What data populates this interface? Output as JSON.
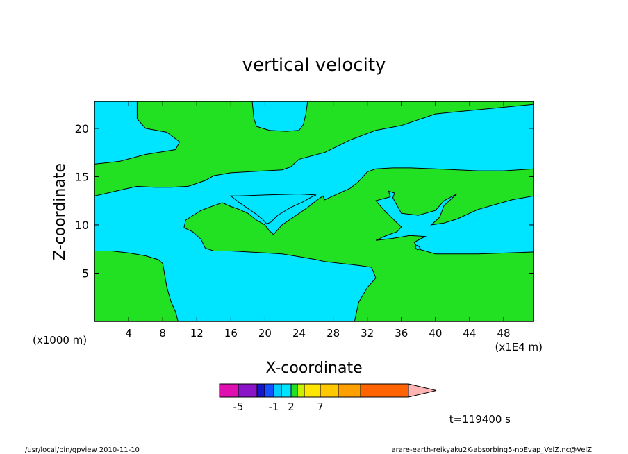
{
  "chart_data": {
    "type": "heatmap",
    "title": "vertical velocity",
    "xlabel": "X-coordinate",
    "ylabel": "Z-coordinate",
    "x_unit_left": "(x1000 m)",
    "x_unit_right": "(x1E4 m)",
    "xlim": [
      0,
      51.5
    ],
    "ylim": [
      0,
      22.8
    ],
    "xticks": [
      "4",
      "8",
      "12",
      "16",
      "20",
      "24",
      "28",
      "32",
      "36",
      "40",
      "44",
      "48"
    ],
    "xtick_values": [
      4,
      8,
      12,
      16,
      20,
      24,
      28,
      32,
      36,
      40,
      44,
      48
    ],
    "yticks": [
      "5",
      "10",
      "15",
      "20"
    ],
    "ytick_values": [
      5,
      10,
      15,
      20
    ],
    "background_color": "#00e5ff",
    "fill_color": "#22e022",
    "regions": [
      {
        "name": "bottom-left-updraft",
        "color": "#22e022",
        "points": [
          [
            0,
            0
          ],
          [
            0,
            7.3
          ],
          [
            2,
            7.3
          ],
          [
            4,
            7.1
          ],
          [
            6,
            6.8
          ],
          [
            7.5,
            6.4
          ],
          [
            8,
            6
          ],
          [
            8.5,
            3.5
          ],
          [
            9,
            2
          ],
          [
            9.5,
            1
          ],
          [
            9.8,
            0
          ]
        ]
      },
      {
        "name": "bottom-right-updraft",
        "color": "#22e022",
        "points": [
          [
            30.5,
            0
          ],
          [
            31,
            2
          ],
          [
            32,
            3.5
          ],
          [
            33,
            4.5
          ],
          [
            32.5,
            5.6
          ],
          [
            31,
            5.8
          ],
          [
            29,
            6
          ],
          [
            27,
            6.2
          ],
          [
            26,
            6.4
          ],
          [
            24,
            6.7
          ],
          [
            22,
            7
          ],
          [
            20,
            7.1
          ],
          [
            18,
            7.2
          ],
          [
            16,
            7.3
          ],
          [
            14,
            7.3
          ],
          [
            13,
            7.6
          ],
          [
            12.5,
            8.5
          ],
          [
            11.5,
            9.3
          ],
          [
            10.5,
            9.7
          ],
          [
            10.7,
            10.5
          ],
          [
            12.5,
            11.5
          ],
          [
            14,
            12
          ],
          [
            15,
            12.3
          ],
          [
            16,
            11.9
          ],
          [
            17,
            11.6
          ],
          [
            18,
            11.2
          ],
          [
            19,
            10.5
          ],
          [
            20,
            10
          ],
          [
            20.5,
            9.4
          ],
          [
            21,
            9
          ],
          [
            21.5,
            9.5
          ],
          [
            22,
            10
          ],
          [
            23,
            10.6
          ],
          [
            24,
            11.2
          ],
          [
            25,
            11.8
          ],
          [
            26,
            12.5
          ],
          [
            26.8,
            13
          ],
          [
            27,
            12.6
          ],
          [
            28,
            13
          ],
          [
            29,
            13.4
          ],
          [
            30,
            13.8
          ],
          [
            31,
            14.5
          ],
          [
            31.5,
            15
          ],
          [
            32,
            15.5
          ],
          [
            33,
            15.8
          ],
          [
            35,
            15.9
          ],
          [
            37,
            15.9
          ],
          [
            40,
            15.8
          ],
          [
            45,
            15.6
          ],
          [
            48,
            15.6
          ],
          [
            51.5,
            15.8
          ],
          [
            51.5,
            13
          ],
          [
            49,
            12.6
          ],
          [
            45,
            11.6
          ],
          [
            42.5,
            10.6
          ],
          [
            41,
            10.2
          ],
          [
            39.5,
            10
          ],
          [
            40.5,
            10.8
          ],
          [
            41,
            12
          ],
          [
            42,
            12.8
          ],
          [
            42.5,
            13.2
          ],
          [
            41,
            12.5
          ],
          [
            40,
            11.5
          ],
          [
            38,
            11
          ],
          [
            36,
            11.2
          ],
          [
            35.5,
            12
          ],
          [
            35,
            12.8
          ],
          [
            35.2,
            13.3
          ],
          [
            34.5,
            13.5
          ],
          [
            34.7,
            12.9
          ],
          [
            33,
            12.5
          ],
          [
            34,
            11.5
          ],
          [
            35.5,
            10.2
          ],
          [
            36,
            9.8
          ],
          [
            35.5,
            9.3
          ],
          [
            34,
            8.8
          ],
          [
            33,
            8.4
          ],
          [
            35,
            8.6
          ],
          [
            37,
            8.9
          ],
          [
            38.8,
            8.8
          ],
          [
            37.5,
            8.2
          ],
          [
            38,
            7.5
          ],
          [
            40,
            7
          ],
          [
            45,
            7
          ],
          [
            51.5,
            7.2
          ],
          [
            51.5,
            0
          ]
        ]
      },
      {
        "name": "upper-updraft",
        "color": "#22e022",
        "points": [
          [
            0,
            16.3
          ],
          [
            3,
            16.6
          ],
          [
            6,
            17.3
          ],
          [
            9.5,
            17.8
          ],
          [
            10,
            18.6
          ],
          [
            8.5,
            19.6
          ],
          [
            6,
            20
          ],
          [
            5,
            21
          ],
          [
            5,
            22.8
          ],
          [
            51.5,
            22.8
          ],
          [
            51.5,
            22.5
          ],
          [
            40,
            21.5
          ],
          [
            36,
            20.3
          ],
          [
            33,
            19.8
          ],
          [
            30,
            18.8
          ],
          [
            27,
            17.5
          ],
          [
            24,
            16.8
          ],
          [
            23,
            16
          ],
          [
            22,
            15.7
          ],
          [
            20,
            15.6
          ],
          [
            16,
            15.4
          ],
          [
            14,
            15.1
          ],
          [
            13,
            14.6
          ],
          [
            11,
            14
          ],
          [
            9,
            13.9
          ],
          [
            7,
            13.9
          ],
          [
            5,
            14
          ],
          [
            4,
            13.8
          ],
          [
            3,
            13.6
          ],
          [
            2,
            13.4
          ],
          [
            0,
            13
          ]
        ]
      },
      {
        "name": "top-downdraft",
        "color": "#00e5ff",
        "points": [
          [
            18.5,
            22.8
          ],
          [
            18.7,
            21
          ],
          [
            19,
            20.2
          ],
          [
            20.5,
            19.8
          ],
          [
            22.5,
            19.7
          ],
          [
            24,
            19.8
          ],
          [
            24.5,
            20.4
          ],
          [
            24.8,
            21.5
          ],
          [
            25,
            22.8
          ]
        ]
      },
      {
        "name": "triangle-downdraft",
        "color": "#00e5ff",
        "points": [
          [
            16,
            13
          ],
          [
            17,
            12.3
          ],
          [
            18,
            11.7
          ],
          [
            19,
            11.1
          ],
          [
            19.7,
            10.6
          ],
          [
            20.2,
            10.1
          ],
          [
            20.7,
            10.3
          ],
          [
            21.5,
            11
          ],
          [
            23,
            11.8
          ],
          [
            24.5,
            12.4
          ],
          [
            25.5,
            12.9
          ],
          [
            26,
            13.1
          ],
          [
            24,
            13.2
          ],
          [
            20,
            13.1
          ],
          [
            17,
            13
          ]
        ]
      },
      {
        "name": "small-cell",
        "color": "#00e5ff",
        "points": [
          [
            37.6,
            7.7
          ],
          [
            37.9,
            7.4
          ],
          [
            38.2,
            7.6
          ],
          [
            37.9,
            7.9
          ]
        ]
      }
    ],
    "colorbar": {
      "colors": [
        "#e010b0",
        "#8c14c8",
        "#1414c8",
        "#1450ff",
        "#00ccff",
        "#00e5ff",
        "#22e022",
        "#c8f000",
        "#ffe600",
        "#ffc800",
        "#ffa000",
        "#ff6400",
        "#ff1e1e",
        "#ff7878",
        "#ffb4b4"
      ],
      "labels": [
        "-5",
        "-1",
        "2",
        "7"
      ],
      "label_slots": [
        1,
        4,
        6,
        9
      ]
    },
    "time_label": "t=119400 s"
  },
  "footer": {
    "left": "/usr/local/bin/gpview  2010-11-10",
    "right": "arare-earth-reikyaku2K-absorbing5-noEvap_VelZ.nc@VelZ"
  }
}
